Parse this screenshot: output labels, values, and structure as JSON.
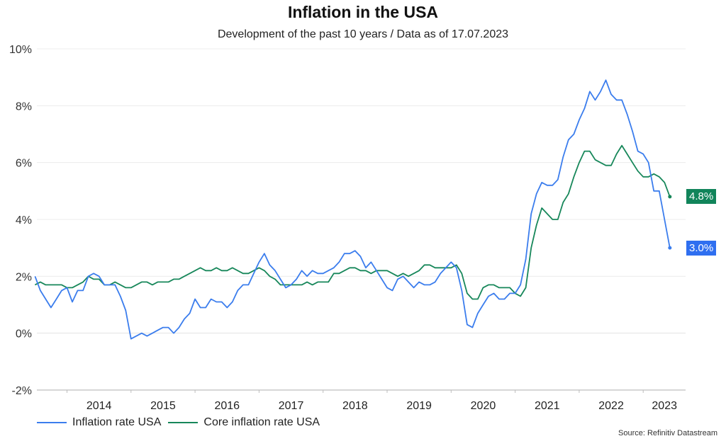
{
  "colors": {
    "inflation": "#3b7ded",
    "core": "#17875a",
    "inflation_badge": "#2f6ff0",
    "core_badge": "#11845a",
    "grid": "#ececec",
    "axis": "#bdbdbd"
  },
  "badges": {
    "core": "4.8%",
    "inflation": "3.0%"
  },
  "legend": {
    "inflation": "Inflation rate USA",
    "core": "Core inflation rate USA"
  },
  "source": "Source: Refinitiv Datastream",
  "chart_data": {
    "type": "line",
    "title": "Inflation in the USA",
    "subtitle": "Development of the past 10 years / Data as of 17.07.2023",
    "xlabel": "",
    "ylabel": "",
    "ylim": [
      -2,
      10
    ],
    "yticks": [
      -2,
      0,
      2,
      4,
      6,
      8,
      10
    ],
    "ytick_labels": [
      "-2%",
      "0%",
      "2%",
      "4%",
      "6%",
      "8%",
      "10%"
    ],
    "xtick_labels": [
      "2014",
      "2015",
      "2016",
      "2017",
      "2018",
      "2019",
      "2020",
      "2021",
      "2022",
      "2023"
    ],
    "grid": true,
    "legend_position": "bottom-left",
    "x_start": "2013-07",
    "x_end": "2023-06",
    "frequency": "monthly",
    "series": [
      {
        "name": "Inflation rate USA",
        "values": [
          2.0,
          1.5,
          1.2,
          0.9,
          1.2,
          1.5,
          1.6,
          1.1,
          1.5,
          1.5,
          2.0,
          2.1,
          2.0,
          1.7,
          1.7,
          1.7,
          1.3,
          0.8,
          -0.2,
          -0.1,
          0.0,
          -0.1,
          0.0,
          0.1,
          0.2,
          0.2,
          0.0,
          0.2,
          0.5,
          0.7,
          1.2,
          0.9,
          0.9,
          1.2,
          1.1,
          1.1,
          0.9,
          1.1,
          1.5,
          1.7,
          1.7,
          2.1,
          2.5,
          2.8,
          2.4,
          2.2,
          1.9,
          1.6,
          1.7,
          1.9,
          2.2,
          2.0,
          2.2,
          2.1,
          2.1,
          2.2,
          2.3,
          2.5,
          2.8,
          2.8,
          2.9,
          2.7,
          2.3,
          2.5,
          2.2,
          1.9,
          1.6,
          1.5,
          1.9,
          2.0,
          1.8,
          1.6,
          1.8,
          1.7,
          1.7,
          1.8,
          2.1,
          2.3,
          2.5,
          2.3,
          1.5,
          0.3,
          0.2,
          0.7,
          1.0,
          1.3,
          1.4,
          1.2,
          1.2,
          1.4,
          1.4,
          1.7,
          2.6,
          4.2,
          4.9,
          5.3,
          5.2,
          5.2,
          5.4,
          6.2,
          6.8,
          7.0,
          7.5,
          7.9,
          8.5,
          8.2,
          8.5,
          8.9,
          8.4,
          8.2,
          8.2,
          7.7,
          7.1,
          6.4,
          6.3,
          6.0,
          5.0,
          5.0,
          4.0,
          3.0
        ]
      },
      {
        "name": "Core inflation rate USA",
        "values": [
          1.7,
          1.8,
          1.7,
          1.7,
          1.7,
          1.7,
          1.6,
          1.6,
          1.7,
          1.8,
          2.0,
          1.9,
          1.9,
          1.7,
          1.7,
          1.8,
          1.7,
          1.6,
          1.6,
          1.7,
          1.8,
          1.8,
          1.7,
          1.8,
          1.8,
          1.8,
          1.9,
          1.9,
          2.0,
          2.1,
          2.2,
          2.3,
          2.2,
          2.2,
          2.3,
          2.2,
          2.2,
          2.3,
          2.2,
          2.1,
          2.1,
          2.2,
          2.3,
          2.2,
          2.0,
          1.9,
          1.7,
          1.7,
          1.7,
          1.7,
          1.7,
          1.8,
          1.7,
          1.8,
          1.8,
          1.8,
          2.1,
          2.1,
          2.2,
          2.3,
          2.3,
          2.2,
          2.2,
          2.1,
          2.2,
          2.2,
          2.2,
          2.1,
          2.0,
          2.1,
          2.0,
          2.1,
          2.2,
          2.4,
          2.4,
          2.3,
          2.3,
          2.3,
          2.3,
          2.4,
          2.1,
          1.4,
          1.2,
          1.2,
          1.6,
          1.7,
          1.7,
          1.6,
          1.6,
          1.6,
          1.4,
          1.3,
          1.6,
          3.0,
          3.8,
          4.4,
          4.2,
          4.0,
          4.0,
          4.6,
          4.9,
          5.5,
          6.0,
          6.4,
          6.4,
          6.1,
          6.0,
          5.9,
          5.9,
          6.3,
          6.6,
          6.3,
          6.0,
          5.7,
          5.5,
          5.5,
          5.6,
          5.5,
          5.3,
          4.8
        ]
      }
    ]
  }
}
